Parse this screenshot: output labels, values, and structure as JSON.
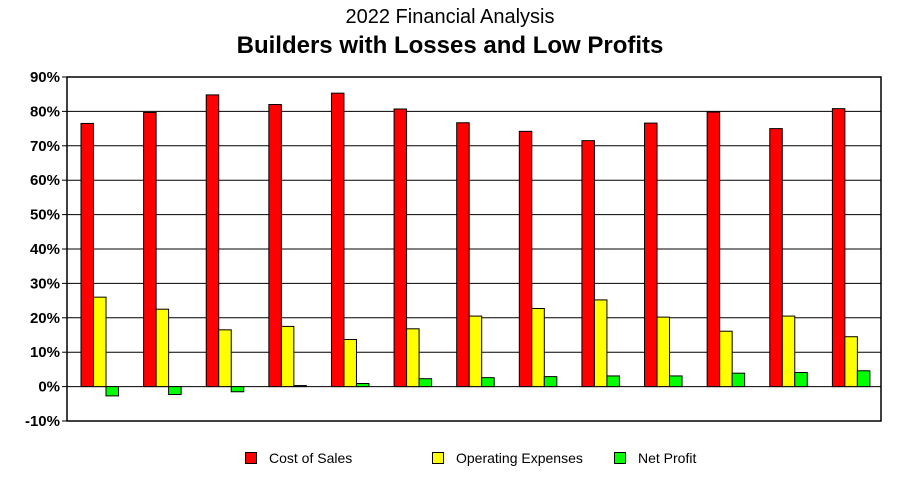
{
  "chart_data": {
    "type": "bar",
    "subtitle": "2022 Financial Analysis",
    "title": "Builders with Losses and Low Profits",
    "xlabel": "",
    "ylabel": "",
    "ylim": [
      -10,
      90
    ],
    "yticks": [
      "-10%",
      "0%",
      "10%",
      "20%",
      "30%",
      "40%",
      "50%",
      "60%",
      "70%",
      "80%",
      "90%"
    ],
    "ytick_values": [
      -10,
      0,
      10,
      20,
      30,
      40,
      50,
      60,
      70,
      80,
      90
    ],
    "grid": true,
    "legend_position": "bottom",
    "categories": [
      "",
      "",
      "",
      "",
      "",
      "",
      "",
      "",
      "",
      "",
      "",
      "",
      ""
    ],
    "series": [
      {
        "name": "Cost of Sales",
        "color": "#ff0000",
        "values": [
          76.5,
          79.7,
          84.8,
          82.0,
          85.3,
          80.7,
          76.7,
          74.2,
          71.5,
          76.6,
          79.8,
          75.0,
          80.8
        ]
      },
      {
        "name": "Operating Expenses",
        "color": "#ffff00",
        "values": [
          26.0,
          22.5,
          16.5,
          17.5,
          13.7,
          16.8,
          20.5,
          22.7,
          25.2,
          20.2,
          16.1,
          20.5,
          14.5
        ]
      },
      {
        "name": "Net Profit",
        "color": "#00ff00",
        "values": [
          -2.7,
          -2.3,
          -1.5,
          0.3,
          0.9,
          2.3,
          2.6,
          2.9,
          3.1,
          3.1,
          3.9,
          4.1,
          4.6
        ]
      }
    ]
  }
}
